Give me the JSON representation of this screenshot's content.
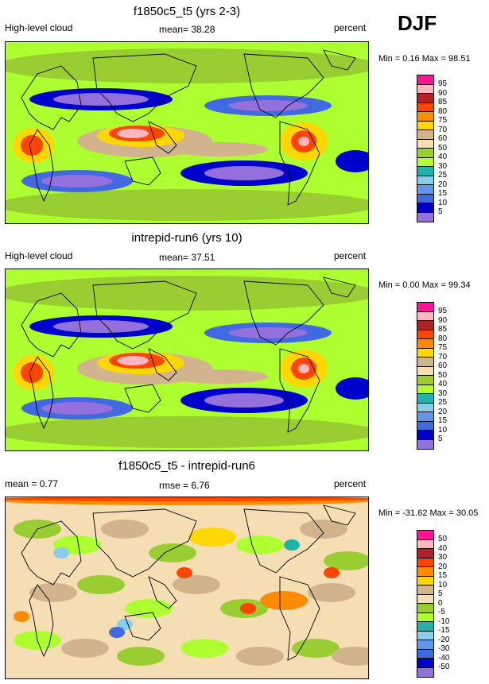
{
  "season": "DJF",
  "panels": [
    {
      "title": "f1850c5_t5 (yrs 2-3)",
      "left_label": "High-level cloud",
      "mean_label": "mean=  38.28",
      "right_label": "percent",
      "minmax": "Min =   0.16 Max =  98.51",
      "levels": [
        "95",
        "90",
        "85",
        "80",
        "75",
        "70",
        "60",
        "50",
        "40",
        "30",
        "25",
        "20",
        "15",
        "10",
        "5"
      ],
      "colors": [
        "#ff1493",
        "#ffb6c1",
        "#b22222",
        "#ff4500",
        "#ff8c00",
        "#ffd700",
        "#d2b48c",
        "#f5deb3",
        "#9acd32",
        "#adff2f",
        "#20b2aa",
        "#87ceeb",
        "#6495ed",
        "#4169e1",
        "#0000cd",
        "#9370db"
      ],
      "field": "high-level-cloud-model"
    },
    {
      "title": "intrepid-run6 (yrs 10)",
      "left_label": "High-level cloud",
      "mean_label": "mean=  37.51",
      "right_label": "percent",
      "minmax": "Min =   0.00 Max =  99.34",
      "levels": [
        "95",
        "90",
        "85",
        "80",
        "75",
        "70",
        "60",
        "50",
        "40",
        "30",
        "25",
        "20",
        "15",
        "10",
        "5"
      ],
      "colors": [
        "#ff1493",
        "#ffb6c1",
        "#b22222",
        "#ff4500",
        "#ff8c00",
        "#ffd700",
        "#d2b48c",
        "#f5deb3",
        "#9acd32",
        "#adff2f",
        "#20b2aa",
        "#87ceeb",
        "#6495ed",
        "#4169e1",
        "#0000cd",
        "#9370db"
      ],
      "field": "high-level-cloud-run6"
    },
    {
      "title": "f1850c5_t5 - intrepid-run6",
      "left_label": "mean =   0.77",
      "mean_label": "rmse =   6.76",
      "right_label": "percent",
      "minmax": "Min = -31.62 Max =  30.05",
      "levels": [
        "50",
        "40",
        "30",
        "20",
        "15",
        "10",
        "5",
        "0",
        "-5",
        "-10",
        "-15",
        "-20",
        "-30",
        "-40",
        "-50"
      ],
      "colors": [
        "#ff1493",
        "#ffb6c1",
        "#b22222",
        "#ff4500",
        "#ff8c00",
        "#ffd700",
        "#d2b48c",
        "#f5deb3",
        "#9acd32",
        "#adff2f",
        "#20b2aa",
        "#87ceeb",
        "#6495ed",
        "#4169e1",
        "#0000cd",
        "#9370db"
      ],
      "field": "difference"
    }
  ]
}
